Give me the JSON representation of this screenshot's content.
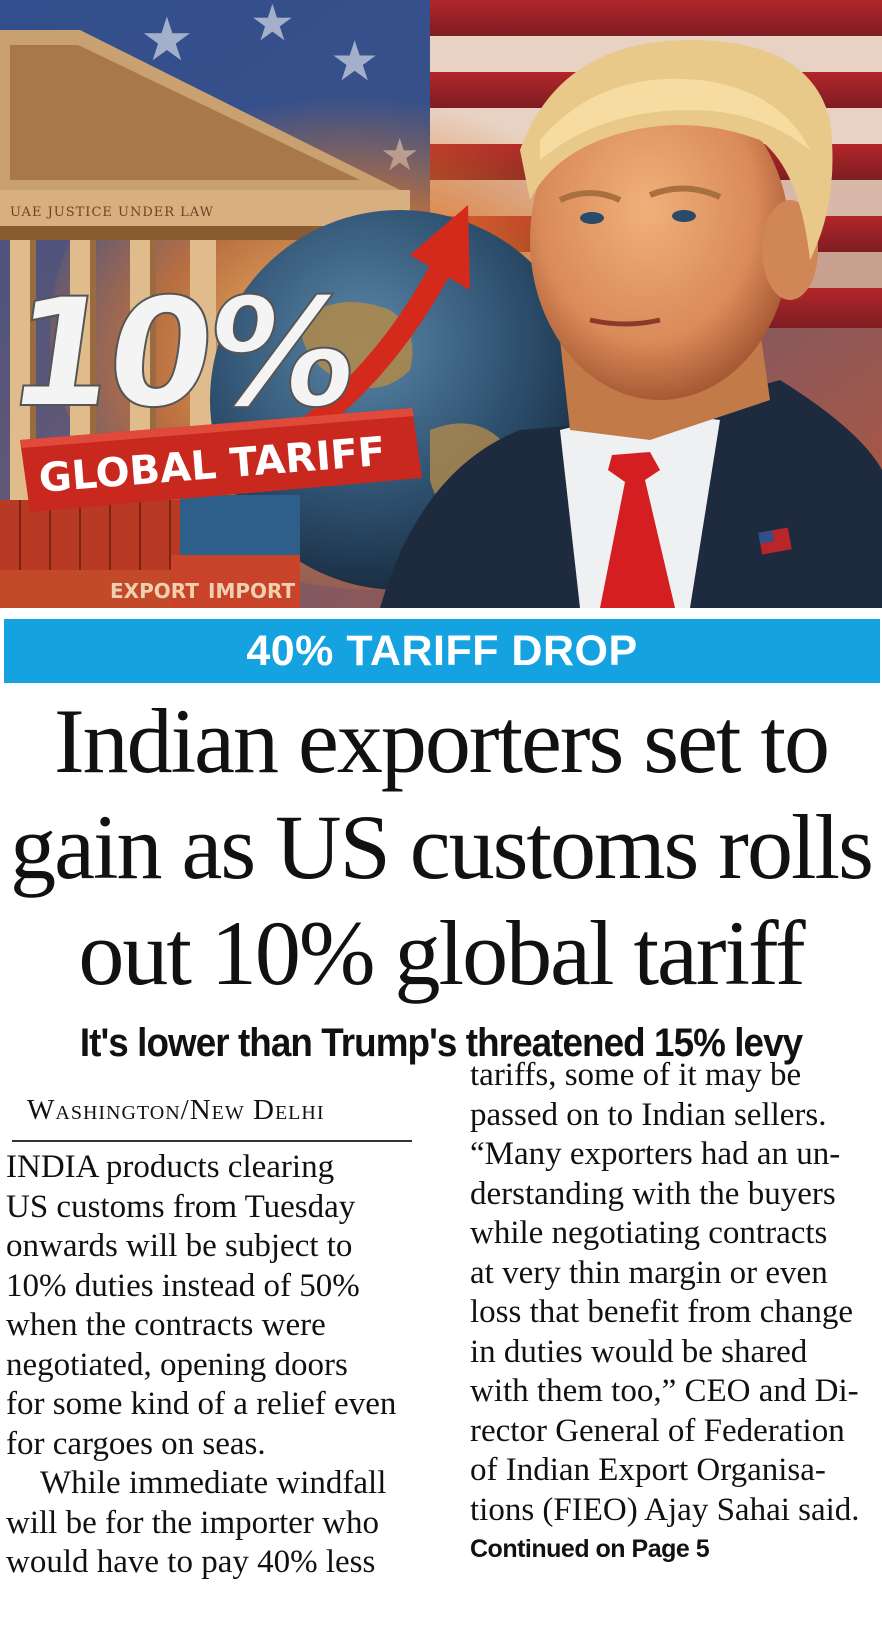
{
  "hero": {
    "tariff_percent": "10%",
    "banner_label": "GLOBAL TARIFF",
    "frieze_text": "UAE JUSTICE UNDER LAW",
    "container_left": "EXPORT",
    "container_right": "IMPORT",
    "colors": {
      "banner_red": "#c8281e",
      "sky_blue": "#2f4f8f",
      "arrow_red": "#d42a1c"
    }
  },
  "kicker": {
    "text": "40% TARIFF DROP",
    "color": "#14a3e0"
  },
  "headline": {
    "lines": [
      "Indian exporters set to",
      "gain as US customs rolls",
      "out 10% global tariff"
    ]
  },
  "subhead": "It's lower than Trump's threatened 15% levy",
  "dateline": "Washington/New Delhi",
  "body_left": {
    "para1": [
      "INDIA products clearing",
      "US customs from Tuesday",
      "onwards will be subject to",
      "10% duties instead of 50%",
      "when the contracts were",
      "negotiated, opening doors",
      "for some kind of a relief even",
      "for cargoes on seas."
    ],
    "para2": [
      "While immediate windfall",
      "will be for the importer who",
      "would have to pay 40% less"
    ]
  },
  "body_right": {
    "lines": [
      "tariffs, some of it may be",
      "passed on to Indian sellers.",
      "“Many exporters had an un-",
      "derstanding with the buyers",
      "while negotiating contracts",
      "at very thin margin or even",
      "loss that benefit from change",
      "in duties would be shared",
      "with them too,” CEO and Di-",
      "rector General of Federation",
      "of Indian Export Organisa-",
      "tions (FIEO) Ajay Sahai said."
    ],
    "continued": "Continued on Page 5"
  }
}
